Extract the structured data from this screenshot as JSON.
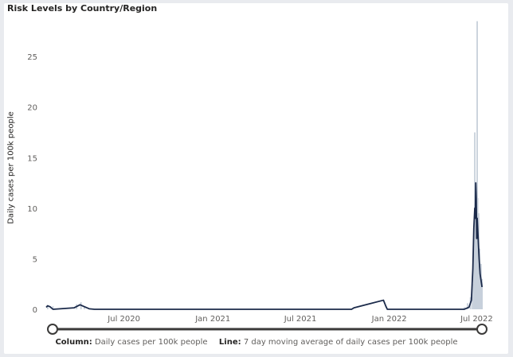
{
  "visual": {
    "title": "Risk Levels by Country/Region",
    "background": "#ffffff"
  },
  "legend": {
    "column_key": "Column:",
    "column_value": "Daily cases per 100k people",
    "line_key": "Line:",
    "line_value": "7 day moving average of daily cases per 100k people"
  },
  "chart_data": {
    "type": "bar",
    "title": "Risk Levels by Country/Region",
    "xlabel": "",
    "ylabel": "Daily cases per 100k people",
    "ylim": [
      0,
      28
    ],
    "yticks": [
      0,
      5,
      10,
      15,
      20,
      25
    ],
    "xlim": [
      "2020-01-22",
      "2022-07-25"
    ],
    "xticks": [
      {
        "date": "2020-07-01",
        "label": "Jul 2020"
      },
      {
        "date": "2021-01-01",
        "label": "Jan 2021"
      },
      {
        "date": "2021-07-01",
        "label": "Jul 2021"
      },
      {
        "date": "2022-01-01",
        "label": "Jan 2022"
      },
      {
        "date": "2022-07-01",
        "label": "Jul 2022"
      }
    ],
    "grid": false,
    "colors": {
      "column": "#c7d0db",
      "line": "#1b2a4a"
    },
    "series": [
      {
        "name": "Daily cases per 100k people",
        "kind": "column",
        "points": [
          [
            "2020-01-25",
            0.4
          ],
          [
            "2020-02-05",
            0.3
          ],
          [
            "2020-03-25",
            0.5
          ],
          [
            "2020-04-03",
            0.7
          ],
          [
            "2020-04-10",
            0.3
          ],
          [
            "2022-06-05",
            0.2
          ],
          [
            "2022-06-12",
            0.6
          ],
          [
            "2022-06-18",
            1.2
          ],
          [
            "2022-06-22",
            2.5
          ],
          [
            "2022-06-25",
            6.0
          ],
          [
            "2022-06-27",
            17.5
          ],
          [
            "2022-06-28",
            9.0
          ],
          [
            "2022-06-29",
            12.5
          ],
          [
            "2022-06-30",
            4.0
          ],
          [
            "2022-07-01",
            8.0
          ],
          [
            "2022-07-02",
            28.5
          ],
          [
            "2022-07-03",
            11.0
          ],
          [
            "2022-07-04",
            3.0
          ],
          [
            "2022-07-05",
            9.5
          ],
          [
            "2022-07-06",
            2.5
          ],
          [
            "2022-07-07",
            6.0
          ],
          [
            "2022-07-08",
            3.5
          ],
          [
            "2022-07-09",
            1.5
          ],
          [
            "2022-07-10",
            4.5
          ],
          [
            "2022-07-11",
            2.0
          ],
          [
            "2022-07-12",
            3.0
          ]
        ]
      },
      {
        "name": "7 day moving average of daily cases per 100k people",
        "kind": "line",
        "points": [
          [
            "2020-01-22",
            0.2
          ],
          [
            "2020-01-25",
            0.35
          ],
          [
            "2020-01-30",
            0.25
          ],
          [
            "2020-02-05",
            0.0
          ],
          [
            "2020-03-20",
            0.15
          ],
          [
            "2020-04-01",
            0.45
          ],
          [
            "2020-04-08",
            0.3
          ],
          [
            "2020-04-20",
            0.05
          ],
          [
            "2020-05-01",
            0.0
          ],
          [
            "2021-10-15",
            0.0
          ],
          [
            "2021-10-20",
            0.15
          ],
          [
            "2021-12-20",
            0.9
          ],
          [
            "2021-12-25",
            0.3
          ],
          [
            "2021-12-28",
            0.0
          ],
          [
            "2022-06-05",
            0.0
          ],
          [
            "2022-06-15",
            0.2
          ],
          [
            "2022-06-20",
            0.9
          ],
          [
            "2022-06-23",
            4.0
          ],
          [
            "2022-06-25",
            8.0
          ],
          [
            "2022-06-27",
            10.0
          ],
          [
            "2022-06-28",
            9.0
          ],
          [
            "2022-06-29",
            12.5
          ],
          [
            "2022-06-30",
            11.0
          ],
          [
            "2022-07-01",
            7.0
          ],
          [
            "2022-07-02",
            9.0
          ],
          [
            "2022-07-03",
            8.0
          ],
          [
            "2022-07-06",
            5.0
          ],
          [
            "2022-07-08",
            3.5
          ],
          [
            "2022-07-12",
            2.2
          ]
        ]
      }
    ]
  }
}
